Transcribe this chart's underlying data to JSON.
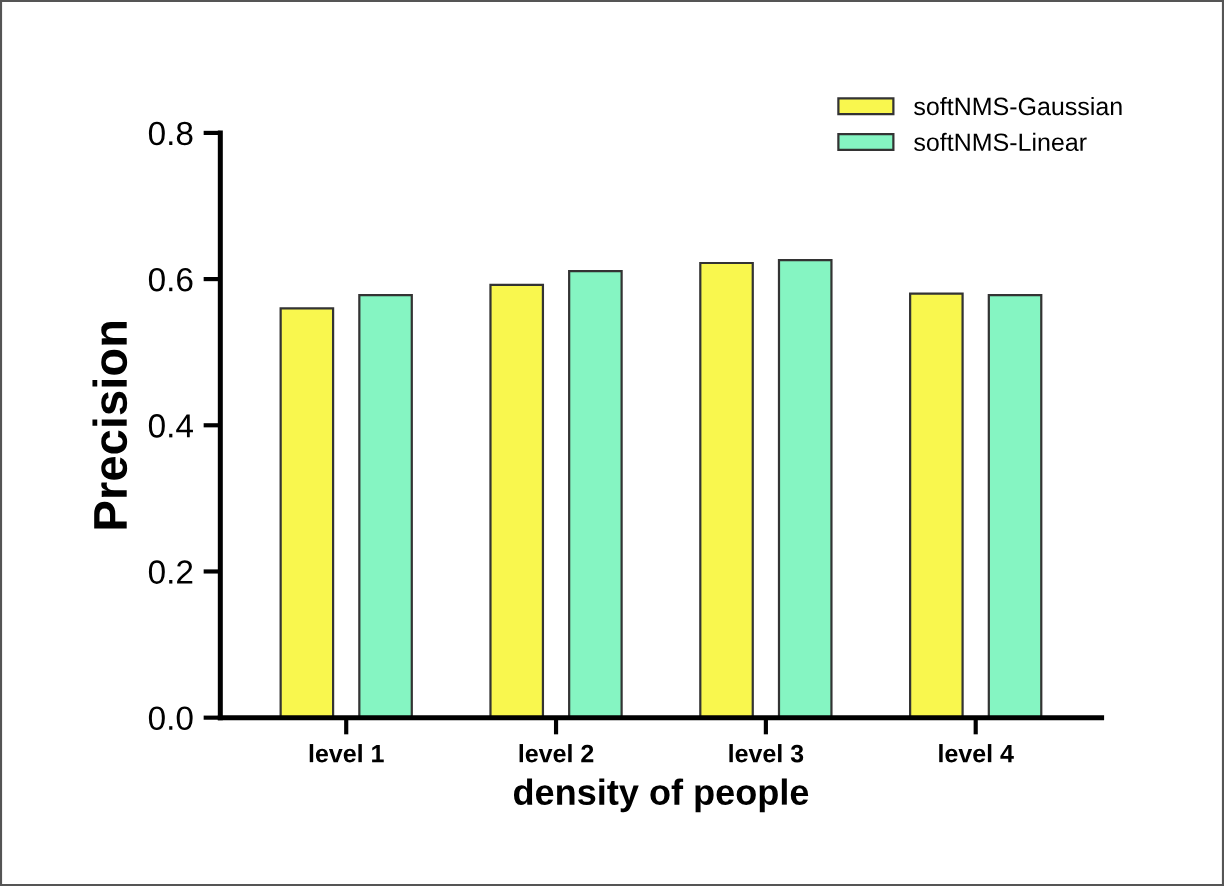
{
  "chart_data": {
    "type": "bar",
    "xlabel": "density of people",
    "ylabel": "Precision",
    "categories": [
      "level 1",
      "level 2",
      "level 3",
      "level 4"
    ],
    "series": [
      {
        "name": "softNMS-Gaussian",
        "color": "#f9f74e",
        "values": [
          0.56,
          0.592,
          0.622,
          0.58
        ]
      },
      {
        "name": "softNMS-Linear",
        "color": "#85f5c2",
        "values": [
          0.578,
          0.611,
          0.626,
          0.578
        ]
      }
    ],
    "ylim": [
      0,
      0.8
    ],
    "yticks": [
      "0.0",
      0.2,
      0.4,
      0.6,
      0.8
    ],
    "grid": false,
    "legend": "top right"
  }
}
